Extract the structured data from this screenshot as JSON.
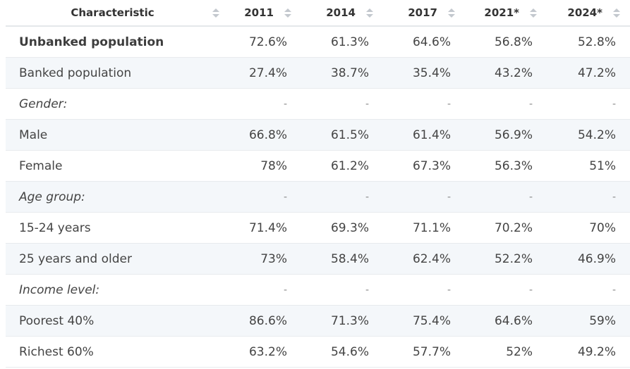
{
  "table": {
    "columns": [
      "Characteristic",
      "2011",
      "2014",
      "2017",
      "2021*",
      "2024*"
    ],
    "rows": [
      {
        "label": "Unbanked population",
        "values": [
          "72.6%",
          "61.3%",
          "64.6%",
          "56.8%",
          "52.8%"
        ],
        "style": "bold"
      },
      {
        "label": "Banked population",
        "values": [
          "27.4%",
          "38.7%",
          "35.4%",
          "43.2%",
          "47.2%"
        ],
        "style": "normal"
      },
      {
        "label": "Gender:",
        "values": [
          "-",
          "-",
          "-",
          "-",
          "-"
        ],
        "style": "italic"
      },
      {
        "label": "Male",
        "values": [
          "66.8%",
          "61.5%",
          "61.4%",
          "56.9%",
          "54.2%"
        ],
        "style": "normal"
      },
      {
        "label": "Female",
        "values": [
          "78%",
          "61.2%",
          "67.3%",
          "56.3%",
          "51%"
        ],
        "style": "normal"
      },
      {
        "label": "Age group:",
        "values": [
          "-",
          "-",
          "-",
          "-",
          "-"
        ],
        "style": "italic"
      },
      {
        "label": "15-24 years",
        "values": [
          "71.4%",
          "69.3%",
          "71.1%",
          "70.2%",
          "70%"
        ],
        "style": "normal"
      },
      {
        "label": "25 years and older",
        "values": [
          "73%",
          "58.4%",
          "62.4%",
          "52.2%",
          "46.9%"
        ],
        "style": "normal"
      },
      {
        "label": "Income level:",
        "values": [
          "-",
          "-",
          "-",
          "-",
          "-"
        ],
        "style": "italic"
      },
      {
        "label": "Poorest 40%",
        "values": [
          "86.6%",
          "71.3%",
          "75.4%",
          "64.6%",
          "59%"
        ],
        "style": "normal"
      },
      {
        "label": "Richest 60%",
        "values": [
          "63.2%",
          "54.6%",
          "57.7%",
          "52%",
          "49.2%"
        ],
        "style": "normal"
      }
    ]
  },
  "icons": {
    "sort": "sort-arrows-icon"
  },
  "colors": {
    "stripe": "#f4f7fa",
    "border": "#e8ebee",
    "sort_icon": "#c3c8ce"
  }
}
